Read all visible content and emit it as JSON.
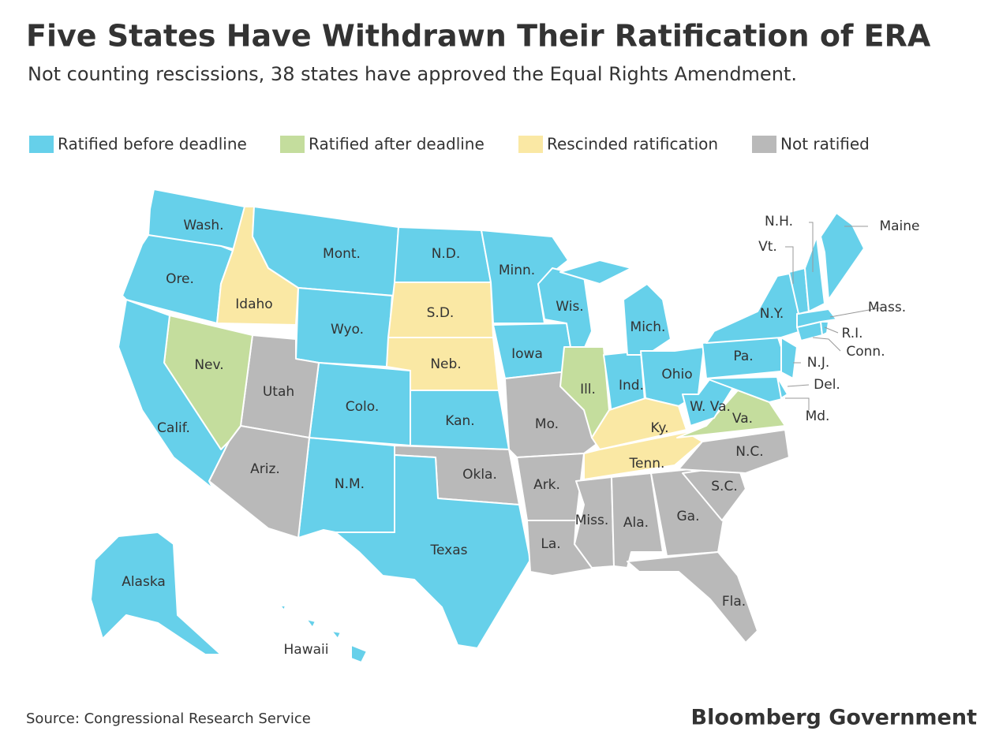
{
  "title": "Five States Have Withdrawn Their Ratification of ERA",
  "subtitle": "Not counting rescissions, 38 states have approved the Equal Rights Amendment.",
  "legend": [
    {
      "label": "Ratified before deadline",
      "color": "#66d0ea"
    },
    {
      "label": "Ratified after deadline",
      "color": "#c4dd9d"
    },
    {
      "label": "Rescinded ratification",
      "color": "#fae8a4"
    },
    {
      "label": "Not ratified",
      "color": "#b9b9b9"
    }
  ],
  "states": [
    {
      "label": "Wash.",
      "status": 0
    },
    {
      "label": "Ore.",
      "status": 0
    },
    {
      "label": "Idaho",
      "status": 2
    },
    {
      "label": "Mont.",
      "status": 0
    },
    {
      "label": "Wyo.",
      "status": 0
    },
    {
      "label": "N.D.",
      "status": 0
    },
    {
      "label": "S.D.",
      "status": 2
    },
    {
      "label": "Neb.",
      "status": 2
    },
    {
      "label": "Kan.",
      "status": 0
    },
    {
      "label": "Okla.",
      "status": 3
    },
    {
      "label": "Texas",
      "status": 0
    },
    {
      "label": "N.M.",
      "status": 0
    },
    {
      "label": "Colo.",
      "status": 0
    },
    {
      "label": "Utah",
      "status": 3
    },
    {
      "label": "Ariz.",
      "status": 3
    },
    {
      "label": "Nev.",
      "status": 1
    },
    {
      "label": "Calif.",
      "status": 0
    },
    {
      "label": "Minn.",
      "status": 0
    },
    {
      "label": "Iowa",
      "status": 0
    },
    {
      "label": "Mo.",
      "status": 3
    },
    {
      "label": "Ark.",
      "status": 3
    },
    {
      "label": "La.",
      "status": 3
    },
    {
      "label": "Wis.",
      "status": 0
    },
    {
      "label": "Ill.",
      "status": 1
    },
    {
      "label": "Ind.",
      "status": 0
    },
    {
      "label": "Mich.",
      "status": 0
    },
    {
      "label": "Ohio",
      "status": 0
    },
    {
      "label": "Ky.",
      "status": 2
    },
    {
      "label": "Tenn.",
      "status": 2
    },
    {
      "label": "Miss.",
      "status": 3
    },
    {
      "label": "Ala.",
      "status": 3
    },
    {
      "label": "Ga.",
      "status": 3
    },
    {
      "label": "Fla.",
      "status": 3
    },
    {
      "label": "S.C.",
      "status": 3
    },
    {
      "label": "N.C.",
      "status": 3
    },
    {
      "label": "Va.",
      "status": 1
    },
    {
      "label": "W. Va.",
      "status": 0
    },
    {
      "label": "Pa.",
      "status": 0
    },
    {
      "label": "N.Y.",
      "status": 0
    },
    {
      "label": "N.J.",
      "status": 0
    },
    {
      "label": "Md.",
      "status": 0
    },
    {
      "label": "Del.",
      "status": 0
    },
    {
      "label": "Conn.",
      "status": 0
    },
    {
      "label": "R.I.",
      "status": 0
    },
    {
      "label": "Mass.",
      "status": 0
    },
    {
      "label": "Vt.",
      "status": 0
    },
    {
      "label": "N.H.",
      "status": 0
    },
    {
      "label": "Maine",
      "status": 0
    },
    {
      "label": "Alaska",
      "status": 0
    },
    {
      "label": "Hawaii",
      "status": 0
    }
  ],
  "source": "Source: Congressional Research Service",
  "brand": "Bloomberg Government"
}
